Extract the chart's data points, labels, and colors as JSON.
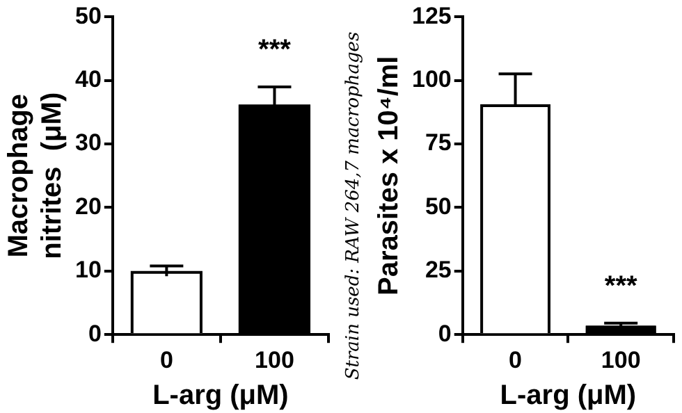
{
  "chart_data": [
    {
      "type": "bar",
      "ylabel": "Macrophage\nnitrites  (μM)",
      "xlabel": "L-arg (μM)",
      "categories": [
        "0",
        "100"
      ],
      "values": [
        10,
        36.2
      ],
      "errors": [
        0.8,
        2.8
      ],
      "colors": [
        "#ffffff",
        "#000000"
      ],
      "ylim": [
        0,
        50
      ],
      "yticks": [
        0,
        10,
        20,
        30,
        40,
        50
      ],
      "grid": false,
      "legend": false,
      "annotations": [
        "***",
        "Strain used: RAW 264,7 macrophages"
      ]
    },
    {
      "type": "bar",
      "ylabel": "Parasites x 10⁴/ml",
      "xlabel": "L-arg (μM)",
      "categories": [
        "0",
        "100"
      ],
      "values": [
        90.6,
        3.5
      ],
      "errors": [
        [
          90.6,
          102.6
        ],
        1
      ],
      "colors": [
        "#ffffff",
        "#000000"
      ],
      "ylim": [
        0,
        125
      ],
      "yticks": [
        0,
        25,
        50,
        75,
        100,
        125
      ],
      "grid": false,
      "legend": false,
      "annotations": [
        "***"
      ]
    }
  ]
}
